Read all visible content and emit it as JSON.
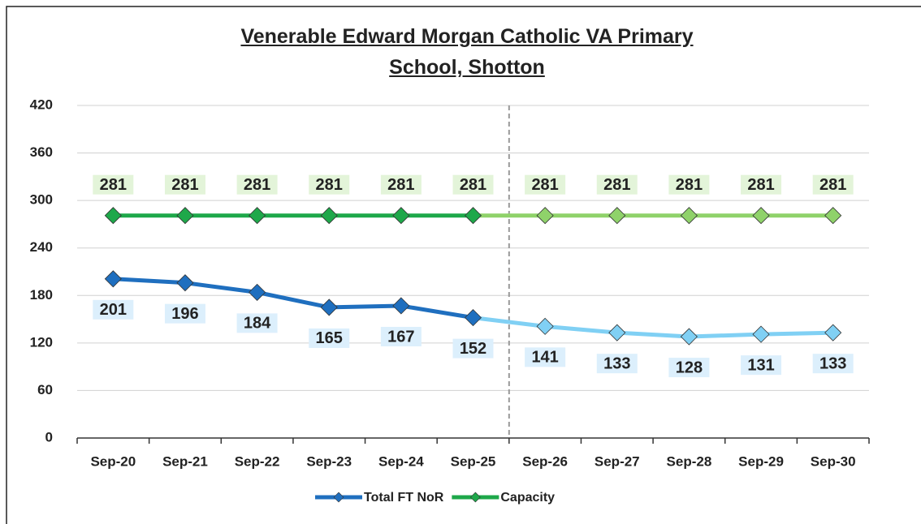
{
  "chart_data": {
    "type": "line",
    "title": "Venerable Edward Morgan Catholic VA Primary School, Shotton",
    "categories": [
      "Sep-20",
      "Sep-21",
      "Sep-22",
      "Sep-23",
      "Sep-24",
      "Sep-25",
      "Sep-26",
      "Sep-27",
      "Sep-28",
      "Sep-29",
      "Sep-30"
    ],
    "series": [
      {
        "name": "Total FT NoR",
        "color": "#1f6fbf",
        "projection_color": "#80d0f4",
        "label_background": "#dceffc",
        "label_position": "below",
        "values": [
          201,
          196,
          184,
          165,
          167,
          152,
          141,
          133,
          128,
          131,
          133
        ]
      },
      {
        "name": "Capacity",
        "color": "#1ea84a",
        "projection_color": "#8fd26a",
        "label_background": "#e3f4d9",
        "label_position": "above",
        "values": [
          281,
          281,
          281,
          281,
          281,
          281,
          281,
          281,
          281,
          281,
          281
        ]
      }
    ],
    "divider_after": "Sep-25",
    "ylim": [
      0,
      420
    ],
    "yticks": [
      0,
      60,
      120,
      180,
      240,
      300,
      360,
      420
    ],
    "grid": true,
    "legend": "bottom"
  }
}
